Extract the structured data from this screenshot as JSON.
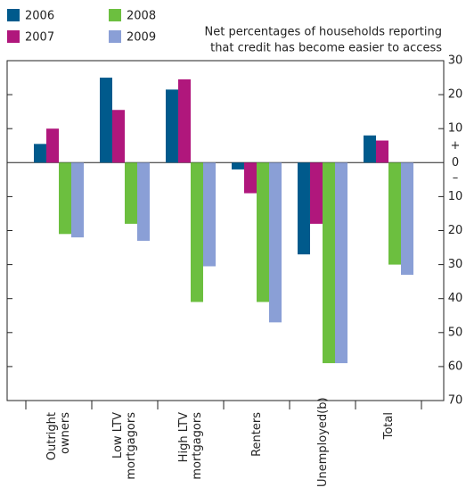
{
  "chart_data": {
    "type": "bar",
    "title": [
      "Net percentages of households reporting",
      "that credit has become easier to access"
    ],
    "annotations": [
      "+",
      "–"
    ],
    "categories": [
      "Outright owners",
      "Low LTV mortgagors",
      "High LTV mortgagors",
      "Renters",
      "Unemployed(b)",
      "Total"
    ],
    "series": [
      {
        "name": "2006",
        "color": "#005a8c",
        "values": [
          5.5,
          25,
          21.5,
          -2,
          -27,
          8
        ]
      },
      {
        "name": "2007",
        "color": "#b0177c",
        "values": [
          10,
          15.5,
          24.5,
          -9,
          -18,
          6.5
        ]
      },
      {
        "name": "2008",
        "color": "#6cbf3f",
        "values": [
          -21,
          -18,
          -41,
          -41,
          -59,
          -30
        ]
      },
      {
        "name": "2009",
        "color": "#8a9fd6",
        "values": [
          -22,
          -23,
          -30.5,
          -47,
          -59,
          -33
        ]
      }
    ],
    "ylim": [
      -70,
      30
    ],
    "yticks": [
      30,
      20,
      10,
      0,
      {
        "value": -10,
        "label": "10"
      },
      {
        "value": -20,
        "label": "20"
      },
      {
        "value": -30,
        "label": "30"
      },
      {
        "value": -40,
        "label": "40"
      },
      {
        "value": -50,
        "label": "50"
      },
      {
        "value": -60,
        "label": "60"
      },
      {
        "value": -70,
        "label": "70"
      }
    ]
  }
}
